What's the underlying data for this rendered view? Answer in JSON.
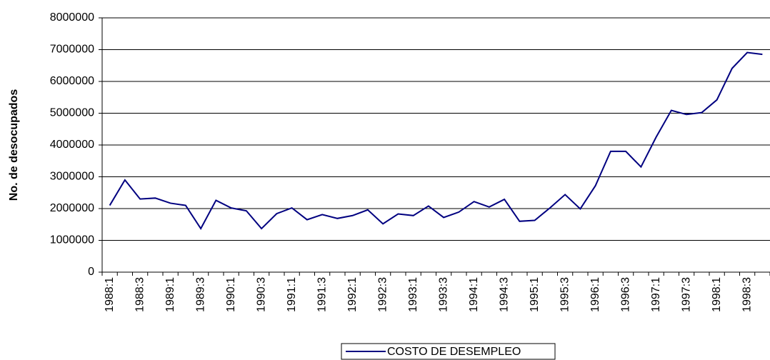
{
  "chart_data": {
    "type": "line",
    "y_label": "No. de desocupados",
    "categories": [
      "1988:1",
      null,
      "1988:3",
      null,
      "1989:1",
      null,
      "1989:3",
      null,
      "1990:1",
      null,
      "1990:3",
      null,
      "1991:1",
      null,
      "1991:3",
      null,
      "1992:1",
      null,
      "1992:3",
      null,
      "1993:1",
      null,
      "1993:3",
      null,
      "1994:1",
      null,
      "1994:3",
      null,
      "1995:1",
      null,
      "1995:3",
      null,
      "1996:1",
      null,
      "1996:3",
      null,
      "1997:1",
      null,
      "1997:3",
      null,
      "1998:1",
      null,
      "1998:3",
      null
    ],
    "series": [
      {
        "name": "COSTO DE DESEMPLEO",
        "color": "#000080",
        "values": [
          2100000,
          2900000,
          2300000,
          2330000,
          2170000,
          2100000,
          1370000,
          2260000,
          2020000,
          1930000,
          1370000,
          1840000,
          2020000,
          1650000,
          1810000,
          1690000,
          1780000,
          1960000,
          1520000,
          1830000,
          1780000,
          2080000,
          1720000,
          1890000,
          2220000,
          2050000,
          2290000,
          1600000,
          1630000,
          2020000,
          2440000,
          1990000,
          2720000,
          3800000,
          3800000,
          3310000,
          4250000,
          5090000,
          4960000,
          5020000,
          5420000,
          6410000,
          6910000,
          6850000
        ]
      }
    ],
    "ylim": [
      0,
      8000000
    ],
    "yticks": [
      0,
      1000000,
      2000000,
      3000000,
      4000000,
      5000000,
      6000000,
      7000000,
      8000000
    ],
    "grid": true,
    "legend": "bottom"
  }
}
